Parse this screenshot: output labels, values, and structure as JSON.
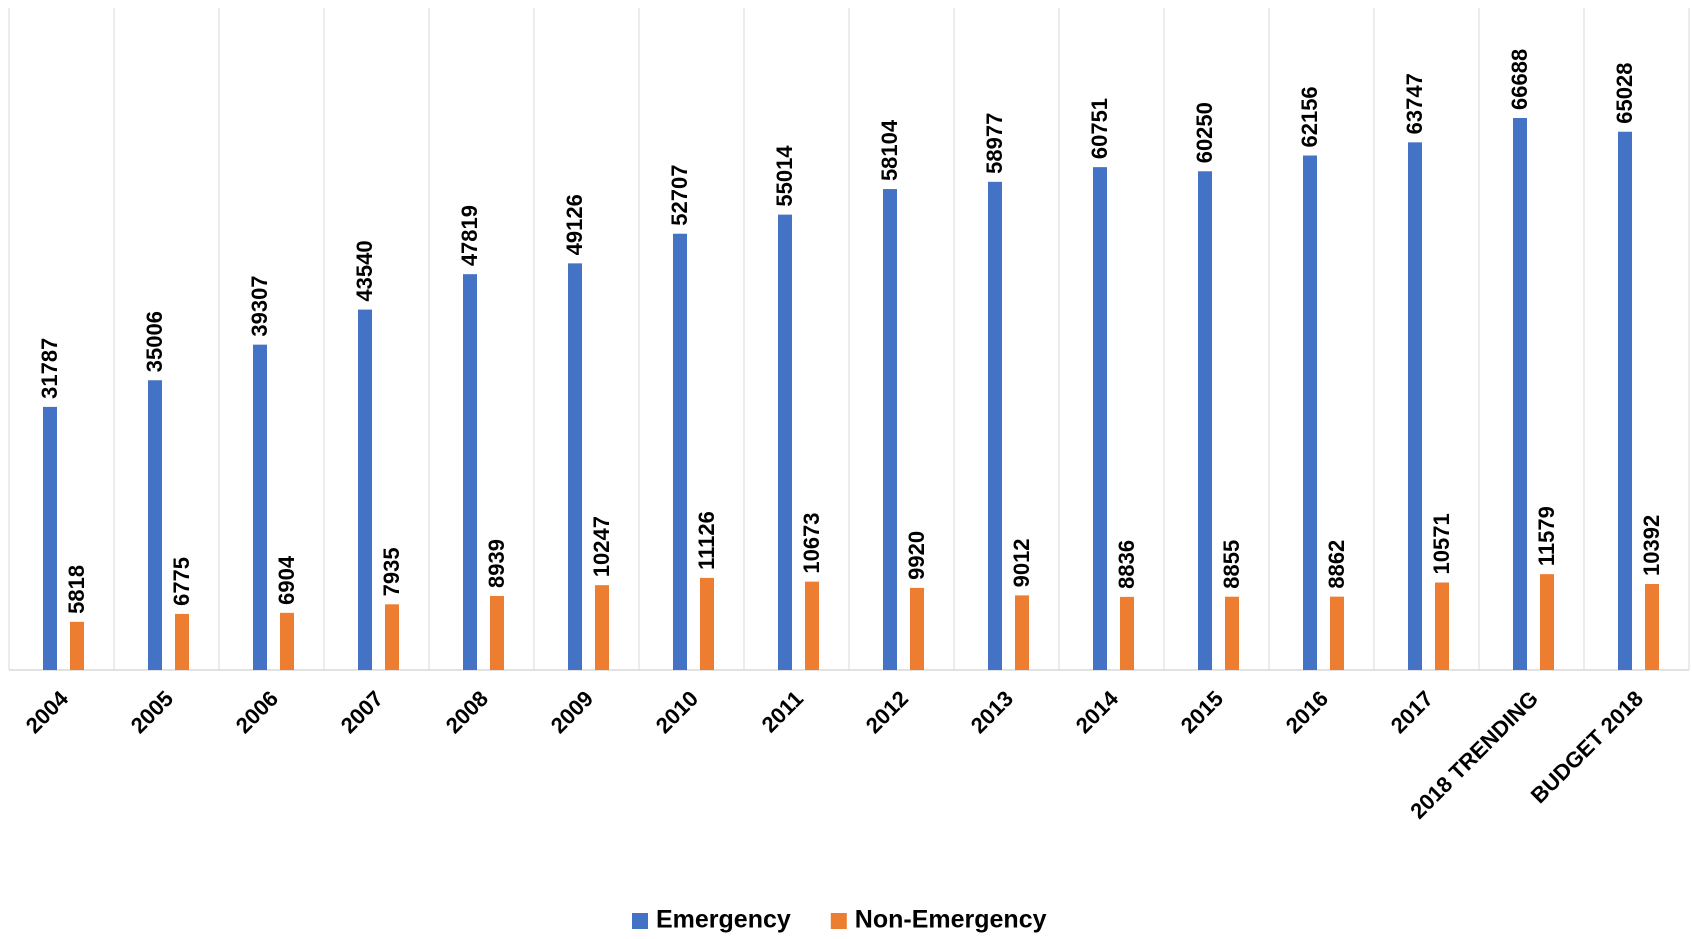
{
  "chart_data": {
    "type": "bar",
    "categories": [
      "2004",
      "2005",
      "2006",
      "2007",
      "2008",
      "2009",
      "2010",
      "2011",
      "2012",
      "2013",
      "2014",
      "2015",
      "2016",
      "2017",
      "2018 TRENDING",
      "BUDGET 2018"
    ],
    "series": [
      {
        "name": "Emergency",
        "color": "#4472c4",
        "values": [
          31787,
          35006,
          39307,
          43540,
          47819,
          49126,
          52707,
          55014,
          58104,
          58977,
          60751,
          60250,
          62156,
          63747,
          66688,
          65028
        ]
      },
      {
        "name": "Non-Emergency",
        "color": "#ed7d31",
        "values": [
          5818,
          6775,
          6904,
          7935,
          8939,
          10247,
          11126,
          10673,
          9920,
          9012,
          8836,
          8855,
          8862,
          10571,
          11579,
          10392
        ]
      }
    ],
    "grid": true,
    "legend": "bottom"
  }
}
